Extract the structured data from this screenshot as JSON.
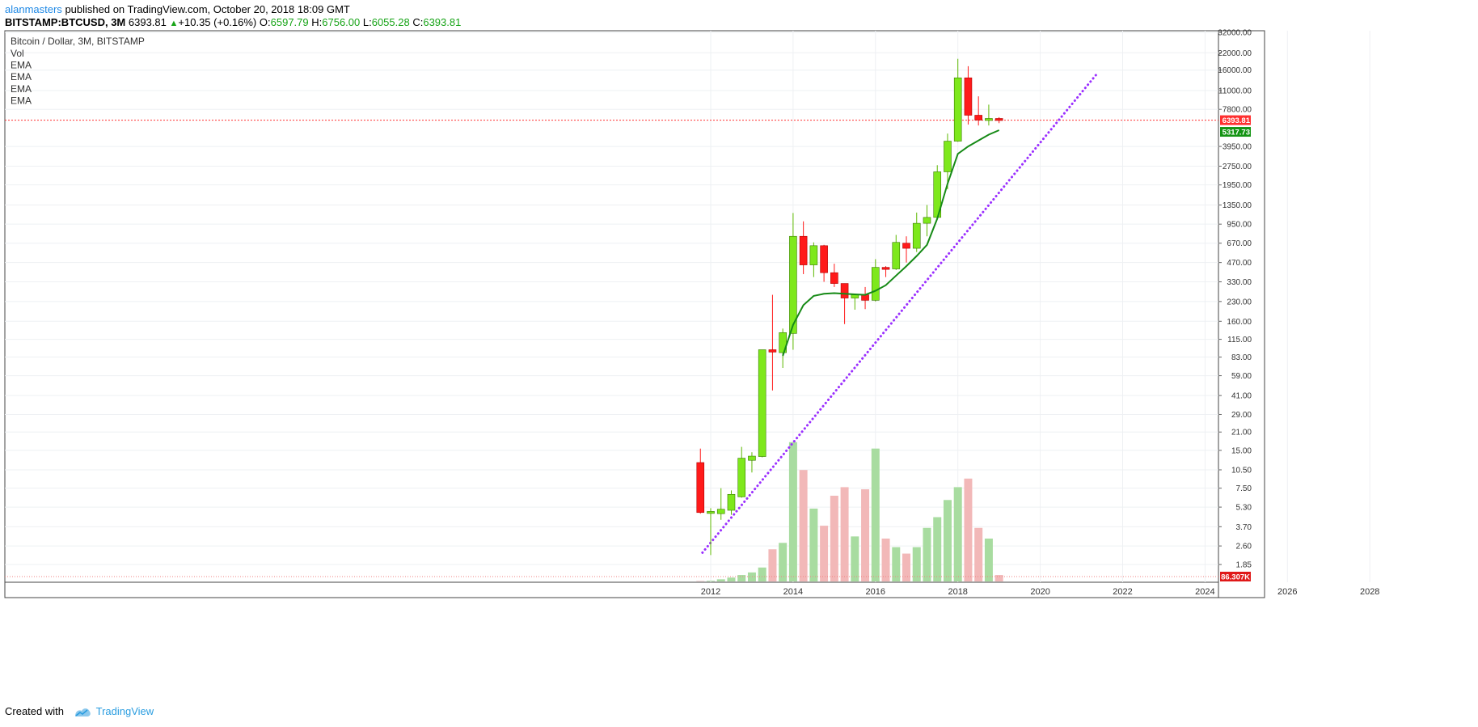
{
  "header": {
    "author": "alanmasters",
    "published_text": "published on TradingView.com, October 20, 2018 18:09 GMT",
    "symbol": "BITSTAMP:BTCUSD, 3M",
    "last": "6393.81",
    "change": "+10.35 (+0.16%)",
    "o_label": "O:",
    "o": "6597.79",
    "h_label": "H:",
    "h": "6756.00",
    "l_label": "L:",
    "l": "6055.28",
    "c_label": "C:",
    "c": "6393.81"
  },
  "legend": {
    "title": "Bitcoin / Dollar, 3M, BITSTAMP",
    "items": [
      "Vol",
      "EMA",
      "EMA",
      "EMA",
      "EMA"
    ]
  },
  "footer": {
    "created_with": "Created with",
    "brand": "TradingView"
  },
  "colors": {
    "up": "#7ee81c",
    "down": "#ff1a1a",
    "vol_up": "#a8dca0",
    "vol_down": "#f2b8b8",
    "ema": "#168a16",
    "trendline": "#9b30ff",
    "last_price_line": "#ff3030",
    "ema_label_bg": "#149414",
    "vol_label_bg": "#e01818"
  },
  "chart_data": {
    "type": "candlestick",
    "scale": "log",
    "price_axis_labels": [
      "32000.00",
      "22000.00",
      "16000.00",
      "11000.00",
      "7800.00",
      "3950.00",
      "2750.00",
      "1950.00",
      "1350.00",
      "950.00",
      "670.00",
      "470.00",
      "330.00",
      "230.00",
      "160.00",
      "115.00",
      "83.00",
      "59.00",
      "41.00",
      "29.00",
      "21.00",
      "15.00",
      "10.50",
      "7.50",
      "5.30",
      "3.70",
      "2.60",
      "1.85"
    ],
    "time_axis_labels": [
      "2012",
      "2014",
      "2016",
      "2018",
      "2020",
      "2022",
      "2024",
      "2026",
      "2028"
    ],
    "last_price_label": "6393.81",
    "ema_label": "5317.73",
    "volume_label": "86.307K",
    "candles": [
      {
        "t": 2011.75,
        "o": 12.0,
        "h": 15.5,
        "l": 4.7,
        "c": 4.8,
        "v": 0.2
      },
      {
        "t": 2012.0,
        "o": 4.9,
        "h": 5.2,
        "l": 2.2,
        "c": 4.9,
        "v": 0.3
      },
      {
        "t": 2012.25,
        "o": 4.7,
        "h": 7.5,
        "l": 4.2,
        "c": 5.1,
        "v": 1.0
      },
      {
        "t": 2012.5,
        "o": 5.0,
        "h": 7.2,
        "l": 4.6,
        "c": 6.7,
        "v": 1.8
      },
      {
        "t": 2012.75,
        "o": 6.4,
        "h": 16.0,
        "l": 6.3,
        "c": 13.0,
        "v": 3.0
      },
      {
        "t": 2013.0,
        "o": 12.5,
        "h": 14.5,
        "l": 10.0,
        "c": 13.5,
        "v": 4.2
      },
      {
        "t": 2013.25,
        "o": 13.4,
        "h": 14.0,
        "l": 13.2,
        "c": 95.0,
        "v": 6.5
      },
      {
        "t": 2013.5,
        "o": 95.0,
        "h": 260.0,
        "l": 45.0,
        "c": 91.0,
        "v": 15.0
      },
      {
        "t": 2013.75,
        "o": 90.0,
        "h": 140.0,
        "l": 68.0,
        "c": 130.0,
        "v": 18.0
      },
      {
        "t": 2014.0,
        "o": 128.0,
        "h": 1165.0,
        "l": 95.0,
        "c": 760.0,
        "v": 65.0
      },
      {
        "t": 2014.25,
        "o": 760.0,
        "h": 1000.0,
        "l": 380.0,
        "c": 450.0,
        "v": 52.0
      },
      {
        "t": 2014.5,
        "o": 450.0,
        "h": 680.0,
        "l": 360.0,
        "c": 640.0,
        "v": 34.0
      },
      {
        "t": 2014.75,
        "o": 640.0,
        "h": 650.0,
        "l": 330.0,
        "c": 390.0,
        "v": 26.0
      },
      {
        "t": 2015.0,
        "o": 390.0,
        "h": 460.0,
        "l": 300.0,
        "c": 320.0,
        "v": 40.0
      },
      {
        "t": 2015.25,
        "o": 320.0,
        "h": 320.0,
        "l": 152.0,
        "c": 245.0,
        "v": 44.0
      },
      {
        "t": 2015.5,
        "o": 245.0,
        "h": 265.0,
        "l": 198.0,
        "c": 260.0,
        "v": 21.0
      },
      {
        "t": 2015.75,
        "o": 260.0,
        "h": 300.0,
        "l": 200.0,
        "c": 235.0,
        "v": 43.0
      },
      {
        "t": 2016.0,
        "o": 235.0,
        "h": 500.0,
        "l": 230.0,
        "c": 430.0,
        "v": 62.0
      },
      {
        "t": 2016.25,
        "o": 430.0,
        "h": 440.0,
        "l": 360.0,
        "c": 418.0,
        "v": 20.0
      },
      {
        "t": 2016.5,
        "o": 418.0,
        "h": 780.0,
        "l": 410.0,
        "c": 680.0,
        "v": 16.0
      },
      {
        "t": 2016.75,
        "o": 670.0,
        "h": 760.0,
        "l": 470.0,
        "c": 610.0,
        "v": 13.0
      },
      {
        "t": 2017.0,
        "o": 610.0,
        "h": 1175.0,
        "l": 570.0,
        "c": 965.0,
        "v": 16.0
      },
      {
        "t": 2017.25,
        "o": 965.0,
        "h": 1350.0,
        "l": 760.0,
        "c": 1075.0,
        "v": 25.0
      },
      {
        "t": 2017.5,
        "o": 1075.0,
        "h": 2800.0,
        "l": 1050.0,
        "c": 2480.0,
        "v": 30.0
      },
      {
        "t": 2017.75,
        "o": 2480.0,
        "h": 5000.0,
        "l": 1800.0,
        "c": 4350.0,
        "v": 38.0
      },
      {
        "t": 2018.0,
        "o": 4350.0,
        "h": 19700.0,
        "l": 4300.0,
        "c": 13900.0,
        "v": 44.0
      },
      {
        "t": 2018.25,
        "o": 13900.0,
        "h": 17200.0,
        "l": 5900.0,
        "c": 7000.0,
        "v": 48.0
      },
      {
        "t": 2018.5,
        "o": 7000.0,
        "h": 9900.0,
        "l": 5800.0,
        "c": 6400.0,
        "v": 25.0
      },
      {
        "t": 2018.75,
        "o": 6400.0,
        "h": 8500.0,
        "l": 5800.0,
        "c": 6600.0,
        "v": 20.0
      },
      {
        "t": 2019.0,
        "o": 6597.79,
        "h": 6756.0,
        "l": 6055.28,
        "c": 6393.81,
        "v": 3.0
      }
    ],
    "ema": [
      [
        2013.75,
        85.0
      ],
      [
        2014.0,
        150.0
      ],
      [
        2014.25,
        215.0
      ],
      [
        2014.5,
        255.0
      ],
      [
        2014.75,
        265.0
      ],
      [
        2015.0,
        268.0
      ],
      [
        2015.25,
        265.0
      ],
      [
        2015.5,
        262.0
      ],
      [
        2015.75,
        260.0
      ],
      [
        2016.0,
        280.0
      ],
      [
        2016.25,
        310.0
      ],
      [
        2016.5,
        370.0
      ],
      [
        2016.75,
        440.0
      ],
      [
        2017.0,
        530.0
      ],
      [
        2017.25,
        650.0
      ],
      [
        2017.5,
        1050.0
      ],
      [
        2017.75,
        2000.0
      ],
      [
        2018.0,
        3450.0
      ],
      [
        2018.25,
        3950.0
      ],
      [
        2018.5,
        4400.0
      ],
      [
        2018.75,
        4900.0
      ],
      [
        2019.0,
        5317.73
      ]
    ],
    "trendline": {
      "from": [
        2011.8,
        2.3
      ],
      "to": [
        2021.4,
        15300.0
      ]
    }
  }
}
